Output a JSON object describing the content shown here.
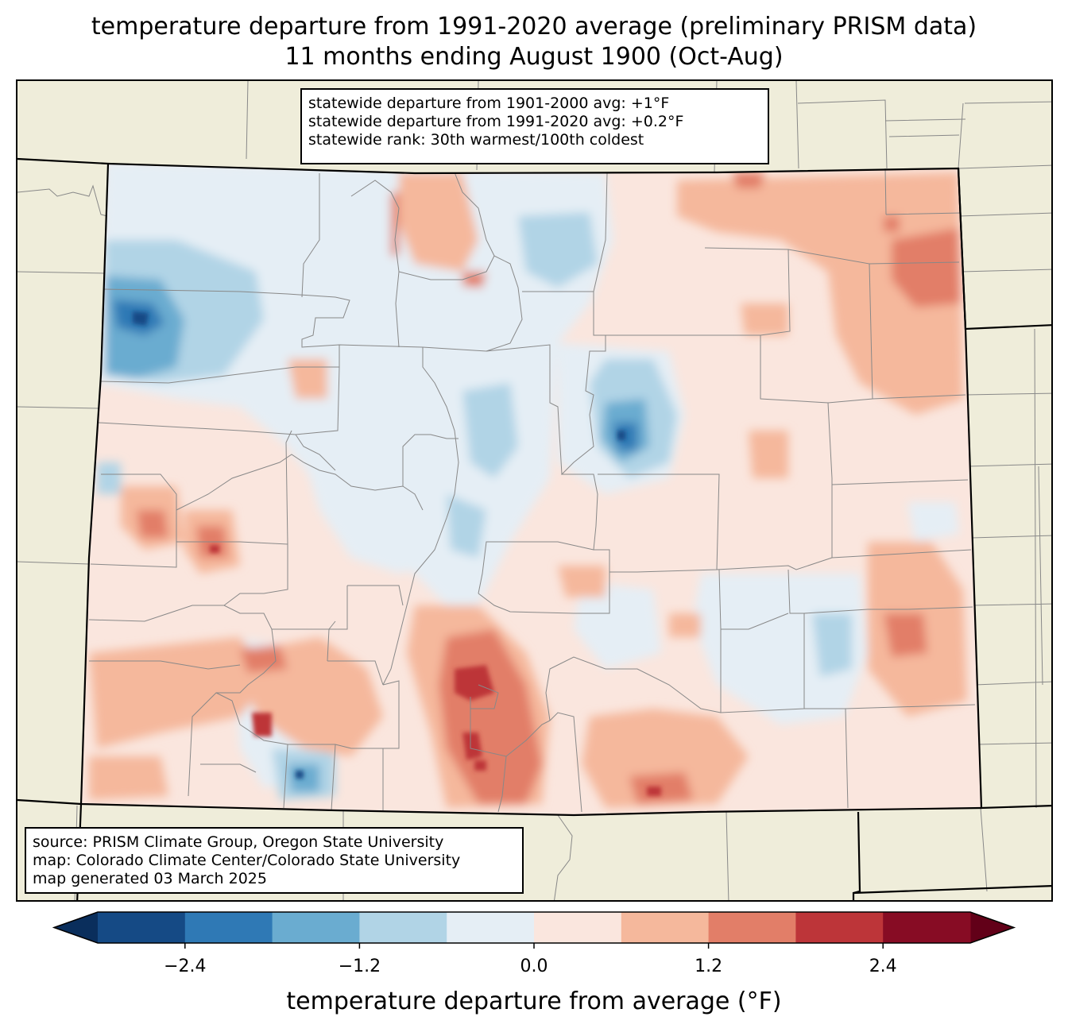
{
  "title": {
    "line1": "temperature departure from 1991-2020 average (preliminary PRISM data)",
    "line2": "11 months ending August 1900 (Oct-Aug)"
  },
  "stats": {
    "line1": "statewide departure from 1901-2000 avg: +1°F",
    "line2": "statewide departure from 1991-2020 avg: +0.2°F",
    "line3": "statewide rank: 30th warmest/100th coldest"
  },
  "source": {
    "line1": "source: PRISM Climate Group, Oregon State University",
    "line2": "map: Colorado Climate Center/Colorado State University",
    "line3": "map generated 03 March 2025"
  },
  "colorbar": {
    "label": "temperature departure from average (°F)",
    "ticks": [
      "−2.4",
      "−1.2",
      "0.0",
      "1.2",
      "2.4"
    ],
    "tick_values": [
      -2.4,
      -1.2,
      0.0,
      1.2,
      2.4
    ],
    "range": [
      -3.0,
      3.0
    ],
    "bins": [
      {
        "from": -3.0,
        "to": -2.4,
        "color": "#154a85"
      },
      {
        "from": -2.4,
        "to": -1.8,
        "color": "#2f79b5"
      },
      {
        "from": -1.8,
        "to": -1.2,
        "color": "#6aacd0"
      },
      {
        "from": -1.2,
        "to": -0.6,
        "color": "#b1d4e6"
      },
      {
        "from": -0.6,
        "to": 0.0,
        "color": "#e5eef5"
      },
      {
        "from": 0.0,
        "to": 0.6,
        "color": "#fae6de"
      },
      {
        "from": 0.6,
        "to": 1.2,
        "color": "#f5b89c"
      },
      {
        "from": 1.2,
        "to": 1.8,
        "color": "#e27e68"
      },
      {
        "from": 1.8,
        "to": 2.4,
        "color": "#bd3539"
      },
      {
        "from": 2.4,
        "to": 3.0,
        "color": "#870c24"
      }
    ],
    "under_color": "#0a2e5c",
    "over_color": "#620018"
  },
  "colors": {
    "background_land": "#efedda",
    "county_line": "#888888",
    "state_line": "#000000"
  }
}
